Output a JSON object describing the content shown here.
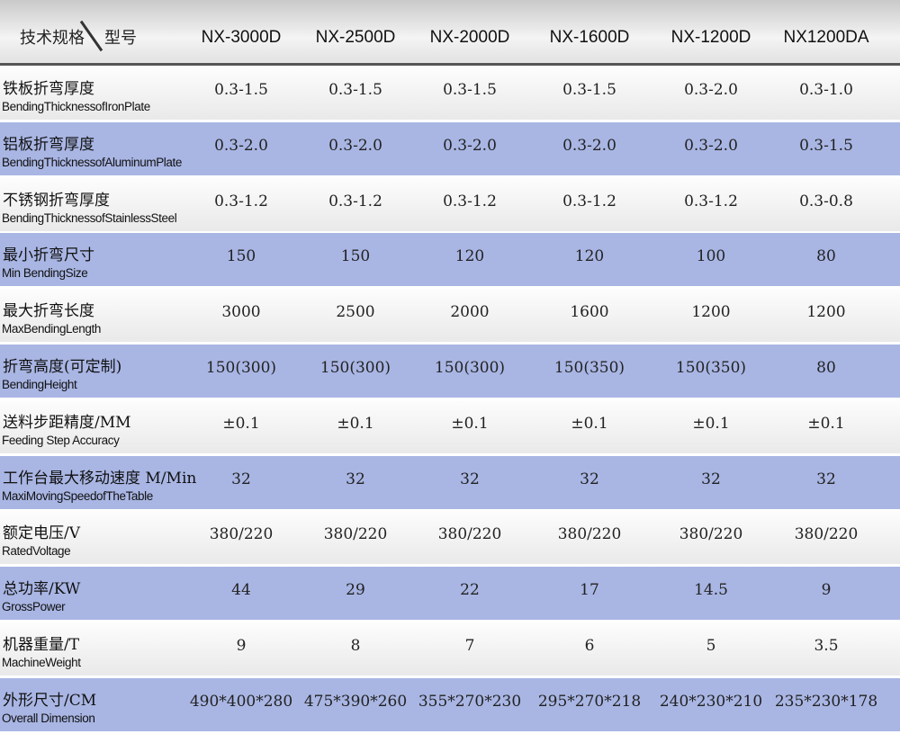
{
  "header": {
    "spec_label": "技术规格",
    "model_label": "型号",
    "models": [
      "NX-3000D",
      "NX-2500D",
      "NX-2000D",
      "NX-1600D",
      "NX-1200D",
      "NX1200DA"
    ]
  },
  "table": {
    "rows": [
      {
        "cn": "铁板折弯厚度",
        "en": "BendingThicknessofIronPlate",
        "values": [
          "0.3-1.5",
          "0.3-1.5",
          "0.3-1.5",
          "0.3-1.5",
          "0.3-2.0",
          "0.3-1.0"
        ]
      },
      {
        "cn": "铝板折弯厚度",
        "en": "BendingThicknessofAluminumPlate",
        "values": [
          "0.3-2.0",
          "0.3-2.0",
          "0.3-2.0",
          "0.3-2.0",
          "0.3-2.0",
          "0.3-1.5"
        ]
      },
      {
        "cn": "不锈钢折弯厚度",
        "en": "BendingThicknessofStainlessSteel",
        "values": [
          "0.3-1.2",
          "0.3-1.2",
          "0.3-1.2",
          "0.3-1.2",
          "0.3-1.2",
          "0.3-0.8"
        ]
      },
      {
        "cn": "最小折弯尺寸",
        "en": "Min BendingSize",
        "values": [
          "150",
          "150",
          "120",
          "120",
          "100",
          "80"
        ]
      },
      {
        "cn": "最大折弯长度",
        "en": "MaxBendingLength",
        "values": [
          "3000",
          "2500",
          "2000",
          "1600",
          "1200",
          "1200"
        ]
      },
      {
        "cn": "折弯高度(可定制)",
        "en": "BendingHeight",
        "values": [
          "150(300)",
          "150(300)",
          "150(300)",
          "150(350)",
          "150(350)",
          "80"
        ]
      },
      {
        "cn": "送料步距精度/MM",
        "en": "Feeding Step Accuracy",
        "values": [
          "±0.1",
          "±0.1",
          "±0.1",
          "±0.1",
          "±0.1",
          "±0.1"
        ]
      },
      {
        "cn": "工作台最大移动速度 M/Min",
        "en": "MaxiMovingSpeedofTheTable",
        "values": [
          "32",
          "32",
          "32",
          "32",
          "32",
          "32"
        ]
      },
      {
        "cn": "额定电压/V",
        "en": "RatedVoltage",
        "values": [
          "380/220",
          "380/220",
          "380/220",
          "380/220",
          "380/220",
          "380/220"
        ]
      },
      {
        "cn": "总功率/KW",
        "en": "GrossPower",
        "values": [
          "44",
          "29",
          "22",
          "17",
          "14.5",
          "9"
        ]
      },
      {
        "cn": "机器重量/T",
        "en": "MachineWeight",
        "values": [
          "9",
          "8",
          "7",
          "6",
          "5",
          "3.5"
        ]
      },
      {
        "cn": "外形尺寸/CM",
        "en": "Overall Dimension",
        "values": [
          "490*400*280",
          "475*390*260",
          "355*270*230",
          "295*270*218",
          "240*230*210",
          "235*230*178"
        ]
      }
    ]
  }
}
